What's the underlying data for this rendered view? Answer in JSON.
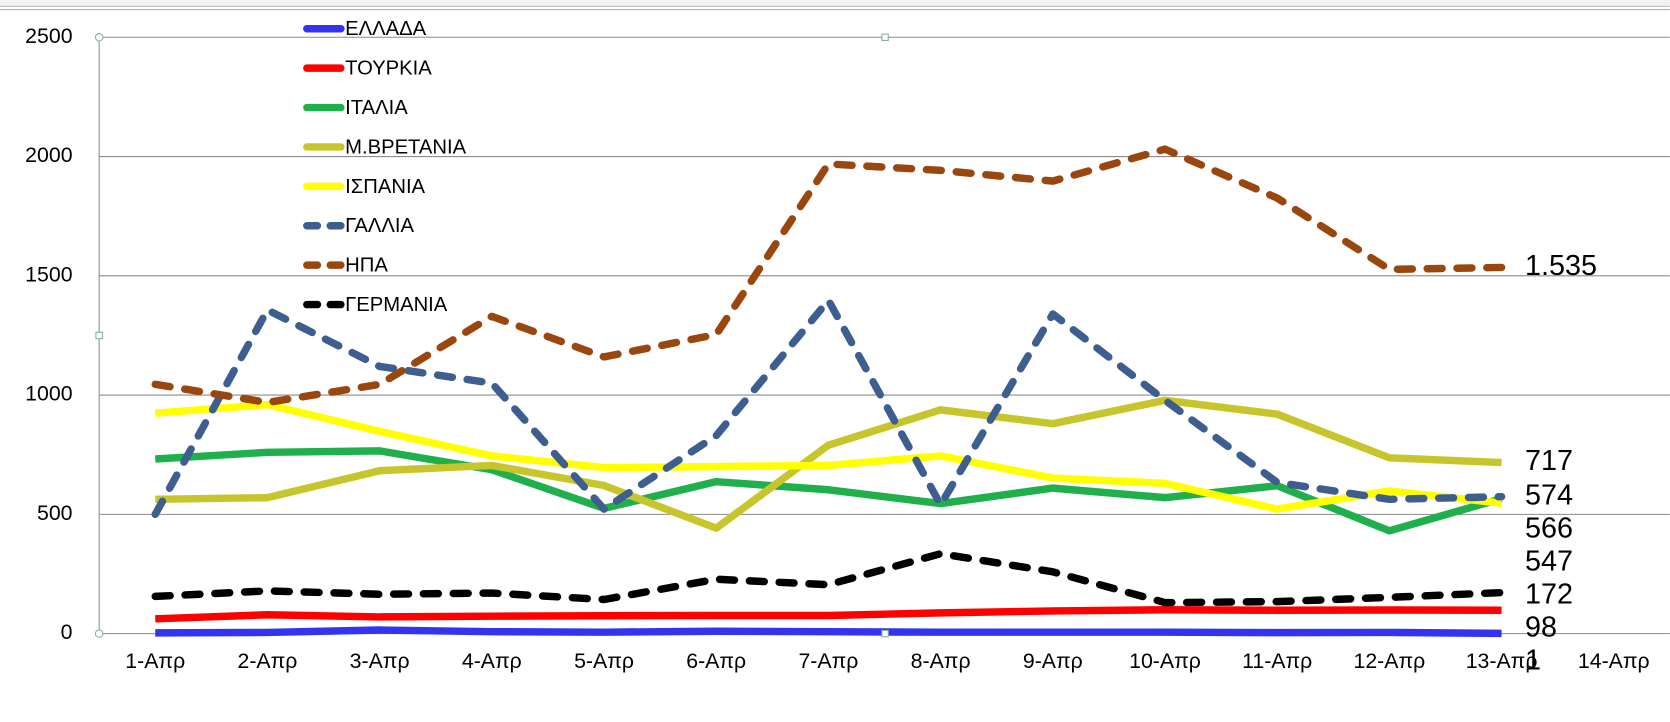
{
  "chart_data": {
    "type": "line",
    "categories": [
      "1-Απρ",
      "2-Απρ",
      "3-Απρ",
      "4-Απρ",
      "5-Απρ",
      "6-Απρ",
      "7-Απρ",
      "8-Απρ",
      "9-Απρ",
      "10-Απρ",
      "11-Απρ",
      "12-Απρ",
      "13-Απρ",
      "14-Απρ"
    ],
    "ylim": [
      0,
      2500
    ],
    "yticks": [
      0,
      500,
      1000,
      1500,
      2000,
      2500
    ],
    "grid": true,
    "legend": "upper left",
    "series": [
      {
        "name": "ΕΛΛΑΔΑ",
        "color": "#3434f0",
        "dashed": false,
        "values": [
          3,
          5,
          15,
          8,
          6,
          10,
          8,
          6,
          6,
          6,
          4,
          5,
          1,
          null
        ]
      },
      {
        "name": "ΤΟΥΡΚΙΑ",
        "color": "#ff0000",
        "dashed": false,
        "values": [
          62,
          79,
          70,
          73,
          75,
          76,
          76,
          87,
          95,
          100,
          98,
          99,
          98,
          null
        ]
      },
      {
        "name": "ΙΤΑΛΙΑ",
        "color": "#1fb04b",
        "dashed": false,
        "values": [
          732,
          760,
          766,
          687,
          525,
          637,
          603,
          545,
          610,
          570,
          620,
          431,
          566,
          null
        ]
      },
      {
        "name": "Μ.ΒΡΕΤΑΝΙΑ",
        "color": "#c6c62c",
        "dashed": false,
        "values": [
          563,
          570,
          683,
          705,
          621,
          442,
          790,
          938,
          880,
          978,
          920,
          737,
          717,
          null
        ]
      },
      {
        "name": "ΙΣΠΑΝΙΑ",
        "color": "#ffff00",
        "dashed": false,
        "values": [
          924,
          960,
          848,
          745,
          696,
          700,
          705,
          745,
          652,
          630,
          522,
          598,
          547,
          null
        ]
      },
      {
        "name": "ΓΑΛΛΙΑ",
        "color": "#3d5e8e",
        "dashed": true,
        "values": [
          500,
          1357,
          1120,
          1050,
          522,
          830,
          1397,
          540,
          1340,
          978,
          634,
          563,
          574,
          null
        ]
      },
      {
        "name": "ΗΠΑ",
        "color": "#9a460f",
        "dashed": true,
        "values": [
          1045,
          969,
          1045,
          1330,
          1160,
          1254,
          1969,
          1942,
          1897,
          2031,
          1826,
          1527,
          1535,
          null
        ],
        "value_labels": [
          null,
          null,
          null,
          null,
          null,
          null,
          null,
          null,
          null,
          null,
          null,
          null,
          "1.535",
          null
        ]
      },
      {
        "name": "ΓΕΡΜΑΝΙΑ",
        "color": "#000000",
        "dashed": true,
        "values": [
          156,
          179,
          165,
          170,
          143,
          228,
          205,
          335,
          259,
          130,
          134,
          152,
          172,
          null
        ]
      }
    ]
  }
}
